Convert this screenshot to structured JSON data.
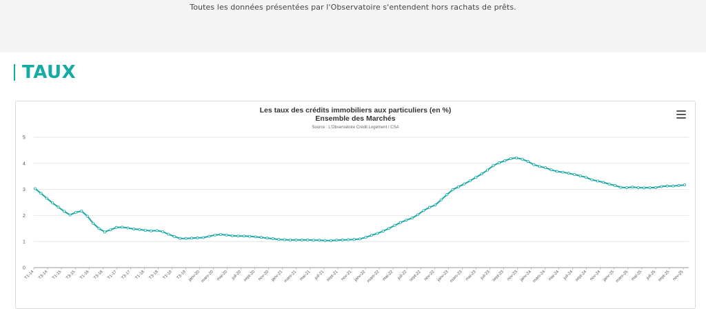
{
  "header": {
    "note": "Toutes les données présentées par l'Observatoire s'entendent hors rachats de prêts."
  },
  "section": {
    "title": "TAUX"
  },
  "chart_menu": {
    "icon": "hamburger-menu-icon"
  },
  "colors": {
    "accent": "#15aaa4",
    "series": "#1aa9a4"
  },
  "chart_data": {
    "type": "line",
    "title": "Les taux des crédits immobiliers aux particuliers (en %)",
    "subtitle": "Ensemble des Marchés",
    "source": "Source : L'Observatoire Crédit Logement / CSA",
    "ylim": [
      0,
      5
    ],
    "yticks": [
      0,
      1,
      2,
      3,
      4,
      5
    ],
    "grid": true,
    "x_tick_labels": [
      "T1-14",
      "T3-14",
      "T1-15",
      "T3-15",
      "T1-16",
      "T3-16",
      "T1-17",
      "T3-17",
      "T1-18",
      "T3-18",
      "T1-19",
      "T3-19",
      "janv-20",
      "mars-20",
      "mai-20",
      "juil-20",
      "sept-20",
      "nov-20",
      "janv-21",
      "mars-21",
      "mai-21",
      "juil-21",
      "sept-21",
      "nov-21",
      "janv-22",
      "mars-22",
      "mai-22",
      "juil-22",
      "sept-22",
      "nov-22",
      "janv-23",
      "mars-23",
      "mai-23",
      "juil-23",
      "sept-23",
      "nov-23",
      "janv-24",
      "mars-24",
      "mai-24",
      "juil-24",
      "sept-24",
      "nov-24",
      "janv-25",
      "mars-25",
      "mai-25",
      "juil-25",
      "sept-25",
      "nov-25"
    ],
    "series": [
      {
        "values": [
          3.03,
          2.85,
          2.66,
          2.48,
          2.32,
          2.16,
          2.02,
          2.12,
          2.17,
          1.97,
          1.7,
          1.5,
          1.37,
          1.45,
          1.54,
          1.55,
          1.52,
          1.48,
          1.46,
          1.43,
          1.41,
          1.42,
          1.38,
          1.28,
          1.19,
          1.12,
          1.12,
          1.13,
          1.14,
          1.15,
          1.2,
          1.25,
          1.27,
          1.25,
          1.22,
          1.21,
          1.21,
          1.2,
          1.18,
          1.16,
          1.13,
          1.11,
          1.08,
          1.07,
          1.06,
          1.06,
          1.06,
          1.06,
          1.05,
          1.05,
          1.04,
          1.04,
          1.05,
          1.06,
          1.07,
          1.08,
          1.1,
          1.16,
          1.24,
          1.31,
          1.4,
          1.5,
          1.62,
          1.73,
          1.82,
          1.9,
          2.03,
          2.19,
          2.31,
          2.4,
          2.6,
          2.8,
          2.99,
          3.1,
          3.21,
          3.33,
          3.46,
          3.59,
          3.74,
          3.91,
          4.02,
          4.1,
          4.18,
          4.21,
          4.16,
          4.07,
          3.95,
          3.88,
          3.83,
          3.75,
          3.69,
          3.66,
          3.62,
          3.57,
          3.52,
          3.46,
          3.37,
          3.32,
          3.27,
          3.2,
          3.15,
          3.08,
          3.07,
          3.09,
          3.07,
          3.06,
          3.07,
          3.07,
          3.11,
          3.13,
          3.13,
          3.15,
          3.17
        ]
      }
    ]
  }
}
